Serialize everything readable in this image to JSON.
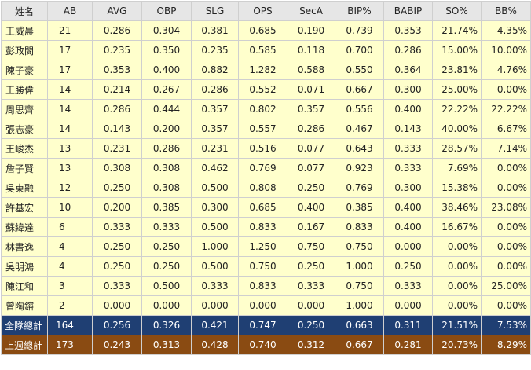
{
  "table": {
    "headers": [
      "姓名",
      "AB",
      "AVG",
      "OBP",
      "SLG",
      "OPS",
      "SecA",
      "BIP%",
      "BABIP",
      "SO%",
      "BB%"
    ],
    "rows": [
      [
        "王威晨",
        "21",
        "0.286",
        "0.304",
        "0.381",
        "0.685",
        "0.190",
        "0.739",
        "0.353",
        "21.74%",
        "4.35%"
      ],
      [
        "彭政閔",
        "17",
        "0.235",
        "0.350",
        "0.235",
        "0.585",
        "0.118",
        "0.700",
        "0.286",
        "15.00%",
        "10.00%"
      ],
      [
        "陳子豪",
        "17",
        "0.353",
        "0.400",
        "0.882",
        "1.282",
        "0.588",
        "0.550",
        "0.364",
        "23.81%",
        "4.76%"
      ],
      [
        "王勝偉",
        "14",
        "0.214",
        "0.267",
        "0.286",
        "0.552",
        "0.071",
        "0.667",
        "0.300",
        "25.00%",
        "0.00%"
      ],
      [
        "周思齊",
        "14",
        "0.286",
        "0.444",
        "0.357",
        "0.802",
        "0.357",
        "0.556",
        "0.400",
        "22.22%",
        "22.22%"
      ],
      [
        "張志豪",
        "14",
        "0.143",
        "0.200",
        "0.357",
        "0.557",
        "0.286",
        "0.467",
        "0.143",
        "40.00%",
        "6.67%"
      ],
      [
        "王峻杰",
        "13",
        "0.231",
        "0.286",
        "0.231",
        "0.516",
        "0.077",
        "0.643",
        "0.333",
        "28.57%",
        "7.14%"
      ],
      [
        "詹子賢",
        "13",
        "0.308",
        "0.308",
        "0.462",
        "0.769",
        "0.077",
        "0.923",
        "0.333",
        "7.69%",
        "0.00%"
      ],
      [
        "吳東融",
        "12",
        "0.250",
        "0.308",
        "0.500",
        "0.808",
        "0.250",
        "0.769",
        "0.300",
        "15.38%",
        "0.00%"
      ],
      [
        "許基宏",
        "10",
        "0.200",
        "0.385",
        "0.300",
        "0.685",
        "0.400",
        "0.385",
        "0.400",
        "38.46%",
        "23.08%"
      ],
      [
        "蘇緯達",
        "6",
        "0.333",
        "0.333",
        "0.500",
        "0.833",
        "0.167",
        "0.833",
        "0.400",
        "16.67%",
        "0.00%"
      ],
      [
        "林書逸",
        "4",
        "0.250",
        "0.250",
        "1.000",
        "1.250",
        "0.750",
        "0.750",
        "0.000",
        "0.00%",
        "0.00%"
      ],
      [
        "吳明鴻",
        "4",
        "0.250",
        "0.250",
        "0.500",
        "0.750",
        "0.250",
        "1.000",
        "0.250",
        "0.00%",
        "0.00%"
      ],
      [
        "陳江和",
        "3",
        "0.333",
        "0.500",
        "0.333",
        "0.833",
        "0.333",
        "0.750",
        "0.333",
        "0.00%",
        "25.00%"
      ],
      [
        "曾陶鎔",
        "2",
        "0.000",
        "0.000",
        "0.000",
        "0.000",
        "0.000",
        "1.000",
        "0.000",
        "0.00%",
        "0.00%"
      ]
    ],
    "team_total": [
      "全隊總計",
      "164",
      "0.256",
      "0.326",
      "0.421",
      "0.747",
      "0.250",
      "0.663",
      "0.311",
      "21.51%",
      "7.53%"
    ],
    "last_week_total": [
      "上週總計",
      "173",
      "0.243",
      "0.313",
      "0.428",
      "0.740",
      "0.312",
      "0.667",
      "0.281",
      "20.73%",
      "8.29%"
    ]
  },
  "colors": {
    "header_bg": "#e6e6e6",
    "row_bg": "#ffffcc",
    "team_total_bg": "#1f3f73",
    "last_week_bg": "#8a4b12",
    "footer_text": "#ffffff"
  }
}
